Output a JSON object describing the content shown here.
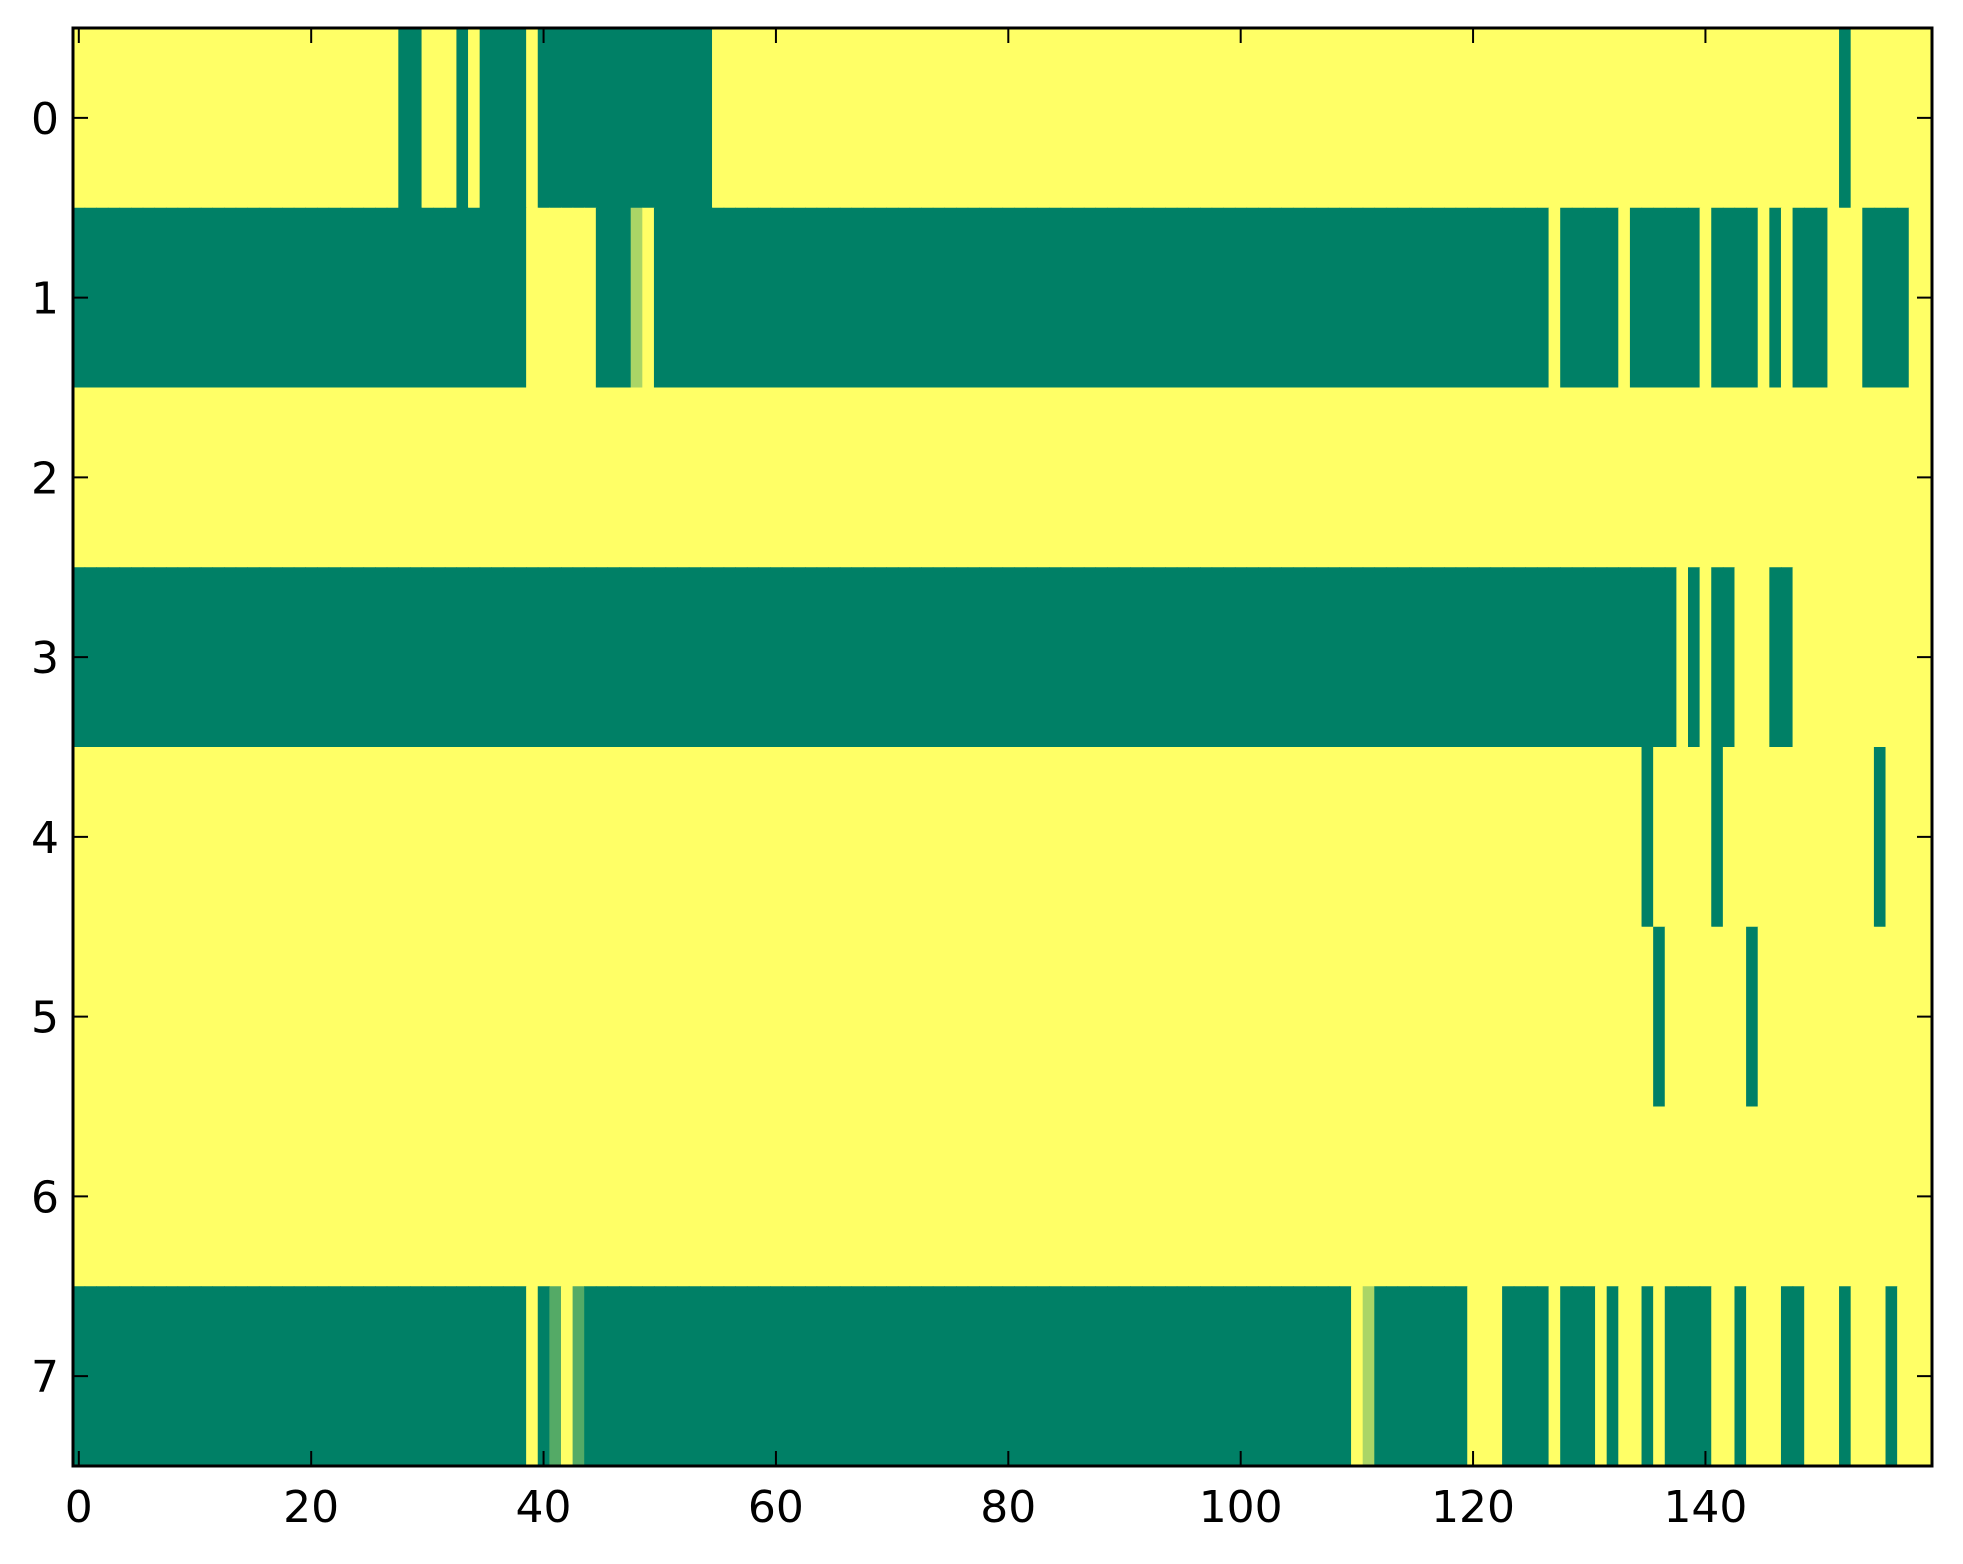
{
  "chart_data": {
    "type": "heatmap",
    "colormap": "summer",
    "color_low": "#008066",
    "color_high": "#ffff66",
    "value_range": [
      0,
      1
    ],
    "title": "",
    "xlabel": "",
    "ylabel": "",
    "xlim": [
      -0.5,
      159.5
    ],
    "ylim": [
      7.5,
      -0.5
    ],
    "grid": false,
    "x_ticks": [
      "0",
      "20",
      "40",
      "60",
      "80",
      "100",
      "120",
      "140"
    ],
    "y_ticks": [
      "0",
      "1",
      "2",
      "3",
      "4",
      "5",
      "6",
      "7"
    ],
    "rows": [
      [
        1,
        1,
        1,
        1,
        1,
        1,
        1,
        1,
        1,
        1,
        1,
        1,
        1,
        1,
        1,
        1,
        1,
        1,
        1,
        1,
        1,
        1,
        1,
        1,
        1,
        1,
        1,
        1,
        0,
        0,
        1,
        1,
        1,
        0,
        1,
        0,
        0,
        0,
        0,
        1,
        0,
        0,
        0,
        0,
        0,
        0,
        0,
        0,
        0,
        0,
        0,
        0,
        0,
        0,
        0,
        1,
        1,
        1,
        1,
        1,
        1,
        1,
        1,
        1,
        1,
        1,
        1,
        1,
        1,
        1,
        1,
        1,
        1,
        1,
        1,
        1,
        1,
        1,
        1,
        1,
        1,
        1,
        1,
        1,
        1,
        1,
        1,
        1,
        1,
        1,
        1,
        1,
        1,
        1,
        1,
        1,
        1,
        1,
        1,
        1,
        1,
        1,
        1,
        1,
        1,
        1,
        1,
        1,
        1,
        1,
        1,
        1,
        1,
        1,
        1,
        1,
        1,
        1,
        1,
        1,
        1,
        1,
        1,
        1,
        1,
        1,
        1,
        1,
        1,
        1,
        1,
        1,
        1,
        1,
        1,
        1,
        1,
        1,
        1,
        1,
        1,
        1,
        1,
        1,
        1,
        1,
        1,
        1,
        1,
        1,
        1,
        1,
        0,
        1,
        1,
        1,
        1,
        1,
        1,
        1
      ],
      [
        0,
        0,
        0,
        0,
        0,
        0,
        0,
        0,
        0,
        0,
        0,
        0,
        0,
        0,
        0,
        0,
        0,
        0,
        0,
        0,
        0,
        0,
        0,
        0,
        0,
        0,
        0,
        0,
        0,
        0,
        0,
        0,
        0,
        0,
        0,
        0,
        0,
        0,
        0,
        1,
        1,
        1,
        1,
        1,
        1,
        0,
        0,
        0,
        0.67,
        1,
        0,
        0,
        0,
        0,
        0,
        0,
        0,
        0,
        0,
        0,
        0,
        0,
        0,
        0,
        0,
        0,
        0,
        0,
        0,
        0,
        0,
        0,
        0,
        0,
        0,
        0,
        0,
        0,
        0,
        0,
        0,
        0,
        0,
        0,
        0,
        0,
        0,
        0,
        0,
        0,
        0,
        0,
        0,
        0,
        0,
        0,
        0,
        0,
        0,
        0,
        0,
        0,
        0,
        0,
        0,
        0,
        0,
        0,
        0,
        0,
        0,
        0,
        0,
        0,
        0,
        0,
        0,
        0,
        0,
        0,
        0,
        0,
        0,
        0,
        0,
        0,
        0,
        1,
        0,
        0,
        0,
        0,
        0,
        1,
        0,
        0,
        0,
        0,
        0,
        0,
        1,
        0,
        0,
        0,
        0,
        1,
        0,
        1,
        0,
        0,
        0,
        1,
        1,
        1,
        0,
        0,
        0,
        0,
        1,
        1
      ],
      [
        1,
        1,
        1,
        1,
        1,
        1,
        1,
        1,
        1,
        1,
        1,
        1,
        1,
        1,
        1,
        1,
        1,
        1,
        1,
        1,
        1,
        1,
        1,
        1,
        1,
        1,
        1,
        1,
        1,
        1,
        1,
        1,
        1,
        1,
        1,
        1,
        1,
        1,
        1,
        1,
        1,
        1,
        1,
        1,
        1,
        1,
        1,
        1,
        1,
        1,
        1,
        1,
        1,
        1,
        1,
        1,
        1,
        1,
        1,
        1,
        1,
        1,
        1,
        1,
        1,
        1,
        1,
        1,
        1,
        1,
        1,
        1,
        1,
        1,
        1,
        1,
        1,
        1,
        1,
        1,
        1,
        1,
        1,
        1,
        1,
        1,
        1,
        1,
        1,
        1,
        1,
        1,
        1,
        1,
        1,
        1,
        1,
        1,
        1,
        1,
        1,
        1,
        1,
        1,
        1,
        1,
        1,
        1,
        1,
        1,
        1,
        1,
        1,
        1,
        1,
        1,
        1,
        1,
        1,
        1,
        1,
        1,
        1,
        1,
        1,
        1,
        1,
        1,
        1,
        1,
        1,
        1,
        1,
        1,
        1,
        1,
        1,
        1,
        1,
        1,
        1,
        1,
        1,
        1,
        1,
        1,
        1,
        1,
        1,
        1,
        1,
        1,
        1,
        1,
        1,
        1,
        1,
        1,
        1,
        1
      ],
      [
        0,
        0,
        0,
        0,
        0,
        0,
        0,
        0,
        0,
        0,
        0,
        0,
        0,
        0,
        0,
        0,
        0,
        0,
        0,
        0,
        0,
        0,
        0,
        0,
        0,
        0,
        0,
        0,
        0,
        0,
        0,
        0,
        0,
        0,
        0,
        0,
        0,
        0,
        0,
        0,
        0,
        0,
        0,
        0,
        0,
        0,
        0,
        0,
        0,
        0,
        0,
        0,
        0,
        0,
        0,
        0,
        0,
        0,
        0,
        0,
        0,
        0,
        0,
        0,
        0,
        0,
        0,
        0,
        0,
        0,
        0,
        0,
        0,
        0,
        0,
        0,
        0,
        0,
        0,
        0,
        0,
        0,
        0,
        0,
        0,
        0,
        0,
        0,
        0,
        0,
        0,
        0,
        0,
        0,
        0,
        0,
        0,
        0,
        0,
        0,
        0,
        0,
        0,
        0,
        0,
        0,
        0,
        0,
        0,
        0,
        0,
        0,
        0,
        0,
        0,
        0,
        0,
        0,
        0,
        0,
        0,
        0,
        0,
        0,
        0,
        0,
        0,
        0,
        0,
        0,
        0,
        0,
        0,
        0,
        0,
        0,
        0,
        0,
        1,
        0,
        1,
        0,
        0,
        1,
        1,
        1,
        0,
        0,
        1,
        1,
        1,
        1,
        1,
        1,
        1,
        1,
        1,
        1,
        1,
        1
      ],
      [
        1,
        1,
        1,
        1,
        1,
        1,
        1,
        1,
        1,
        1,
        1,
        1,
        1,
        1,
        1,
        1,
        1,
        1,
        1,
        1,
        1,
        1,
        1,
        1,
        1,
        1,
        1,
        1,
        1,
        1,
        1,
        1,
        1,
        1,
        1,
        1,
        1,
        1,
        1,
        1,
        1,
        1,
        1,
        1,
        1,
        1,
        1,
        1,
        1,
        1,
        1,
        1,
        1,
        1,
        1,
        1,
        1,
        1,
        1,
        1,
        1,
        1,
        1,
        1,
        1,
        1,
        1,
        1,
        1,
        1,
        1,
        1,
        1,
        1,
        1,
        1,
        1,
        1,
        1,
        1,
        1,
        1,
        1,
        1,
        1,
        1,
        1,
        1,
        1,
        1,
        1,
        1,
        1,
        1,
        1,
        1,
        1,
        1,
        1,
        1,
        1,
        1,
        1,
        1,
        1,
        1,
        1,
        1,
        1,
        1,
        1,
        1,
        1,
        1,
        1,
        1,
        1,
        1,
        1,
        1,
        1,
        1,
        1,
        1,
        1,
        1,
        1,
        1,
        1,
        1,
        1,
        1,
        1,
        1,
        1,
        0,
        1,
        1,
        1,
        1,
        1,
        0,
        1,
        1,
        1,
        1,
        1,
        1,
        1,
        1,
        1,
        1,
        1,
        1,
        1,
        0,
        1,
        1,
        1,
        1
      ],
      [
        1,
        1,
        1,
        1,
        1,
        1,
        1,
        1,
        1,
        1,
        1,
        1,
        1,
        1,
        1,
        1,
        1,
        1,
        1,
        1,
        1,
        1,
        1,
        1,
        1,
        1,
        1,
        1,
        1,
        1,
        1,
        1,
        1,
        1,
        1,
        1,
        1,
        1,
        1,
        1,
        1,
        1,
        1,
        1,
        1,
        1,
        1,
        1,
        1,
        1,
        1,
        1,
        1,
        1,
        1,
        1,
        1,
        1,
        1,
        1,
        1,
        1,
        1,
        1,
        1,
        1,
        1,
        1,
        1,
        1,
        1,
        1,
        1,
        1,
        1,
        1,
        1,
        1,
        1,
        1,
        1,
        1,
        1,
        1,
        1,
        1,
        1,
        1,
        1,
        1,
        1,
        1,
        1,
        1,
        1,
        1,
        1,
        1,
        1,
        1,
        1,
        1,
        1,
        1,
        1,
        1,
        1,
        1,
        1,
        1,
        1,
        1,
        1,
        1,
        1,
        1,
        1,
        1,
        1,
        1,
        1,
        1,
        1,
        1,
        1,
        1,
        1,
        1,
        1,
        1,
        1,
        1,
        1,
        1,
        1,
        1,
        0,
        1,
        1,
        1,
        1,
        1,
        1,
        1,
        0,
        1,
        1,
        1,
        1,
        1,
        1,
        1,
        1,
        1,
        1,
        1,
        1,
        1,
        1,
        1
      ],
      [
        1,
        1,
        1,
        1,
        1,
        1,
        1,
        1,
        1,
        1,
        1,
        1,
        1,
        1,
        1,
        1,
        1,
        1,
        1,
        1,
        1,
        1,
        1,
        1,
        1,
        1,
        1,
        1,
        1,
        1,
        1,
        1,
        1,
        1,
        1,
        1,
        1,
        1,
        1,
        1,
        1,
        1,
        1,
        1,
        1,
        1,
        1,
        1,
        1,
        1,
        1,
        1,
        1,
        1,
        1,
        1,
        1,
        1,
        1,
        1,
        1,
        1,
        1,
        1,
        1,
        1,
        1,
        1,
        1,
        1,
        1,
        1,
        1,
        1,
        1,
        1,
        1,
        1,
        1,
        1,
        1,
        1,
        1,
        1,
        1,
        1,
        1,
        1,
        1,
        1,
        1,
        1,
        1,
        1,
        1,
        1,
        1,
        1,
        1,
        1,
        1,
        1,
        1,
        1,
        1,
        1,
        1,
        1,
        1,
        1,
        1,
        1,
        1,
        1,
        1,
        1,
        1,
        1,
        1,
        1,
        1,
        1,
        1,
        1,
        1,
        1,
        1,
        1,
        1,
        1,
        1,
        1,
        1,
        1,
        1,
        1,
        1,
        1,
        1,
        1,
        1,
        1,
        1,
        1,
        1,
        1,
        1,
        1,
        1,
        1,
        1,
        1,
        1,
        1,
        1,
        1,
        1,
        1,
        1,
        1
      ],
      [
        0,
        0,
        0,
        0,
        0,
        0,
        0,
        0,
        0,
        0,
        0,
        0,
        0,
        0,
        0,
        0,
        0,
        0,
        0,
        0,
        0,
        0,
        0,
        0,
        0,
        0,
        0,
        0,
        0,
        0,
        0,
        0,
        0,
        0,
        0,
        0,
        0,
        0,
        0,
        1,
        0,
        0.33,
        1,
        0.33,
        0,
        0,
        0,
        0,
        0,
        0,
        0,
        0,
        0,
        0,
        0,
        0,
        0,
        0,
        0,
        0,
        0,
        0,
        0,
        0,
        0,
        0,
        0,
        0,
        0,
        0,
        0,
        0,
        0,
        0,
        0,
        0,
        0,
        0,
        0,
        0,
        0,
        0,
        0,
        0,
        0,
        0,
        0,
        0,
        0,
        0,
        0,
        0,
        0,
        0,
        0,
        0,
        0,
        0,
        0,
        0,
        0,
        0,
        0,
        0,
        0,
        0,
        0,
        0,
        0,
        0,
        1,
        0.67,
        0,
        0,
        0,
        0,
        0,
        0,
        0,
        0,
        1,
        1,
        1,
        0,
        0,
        0,
        0,
        1,
        0,
        0,
        0,
        1,
        0,
        1,
        1,
        0,
        1,
        0,
        0,
        0,
        0,
        1,
        1,
        0,
        1,
        1,
        1,
        0,
        0,
        1,
        1,
        1,
        0,
        1,
        1,
        1,
        0,
        1,
        1,
        1
      ]
    ]
  }
}
